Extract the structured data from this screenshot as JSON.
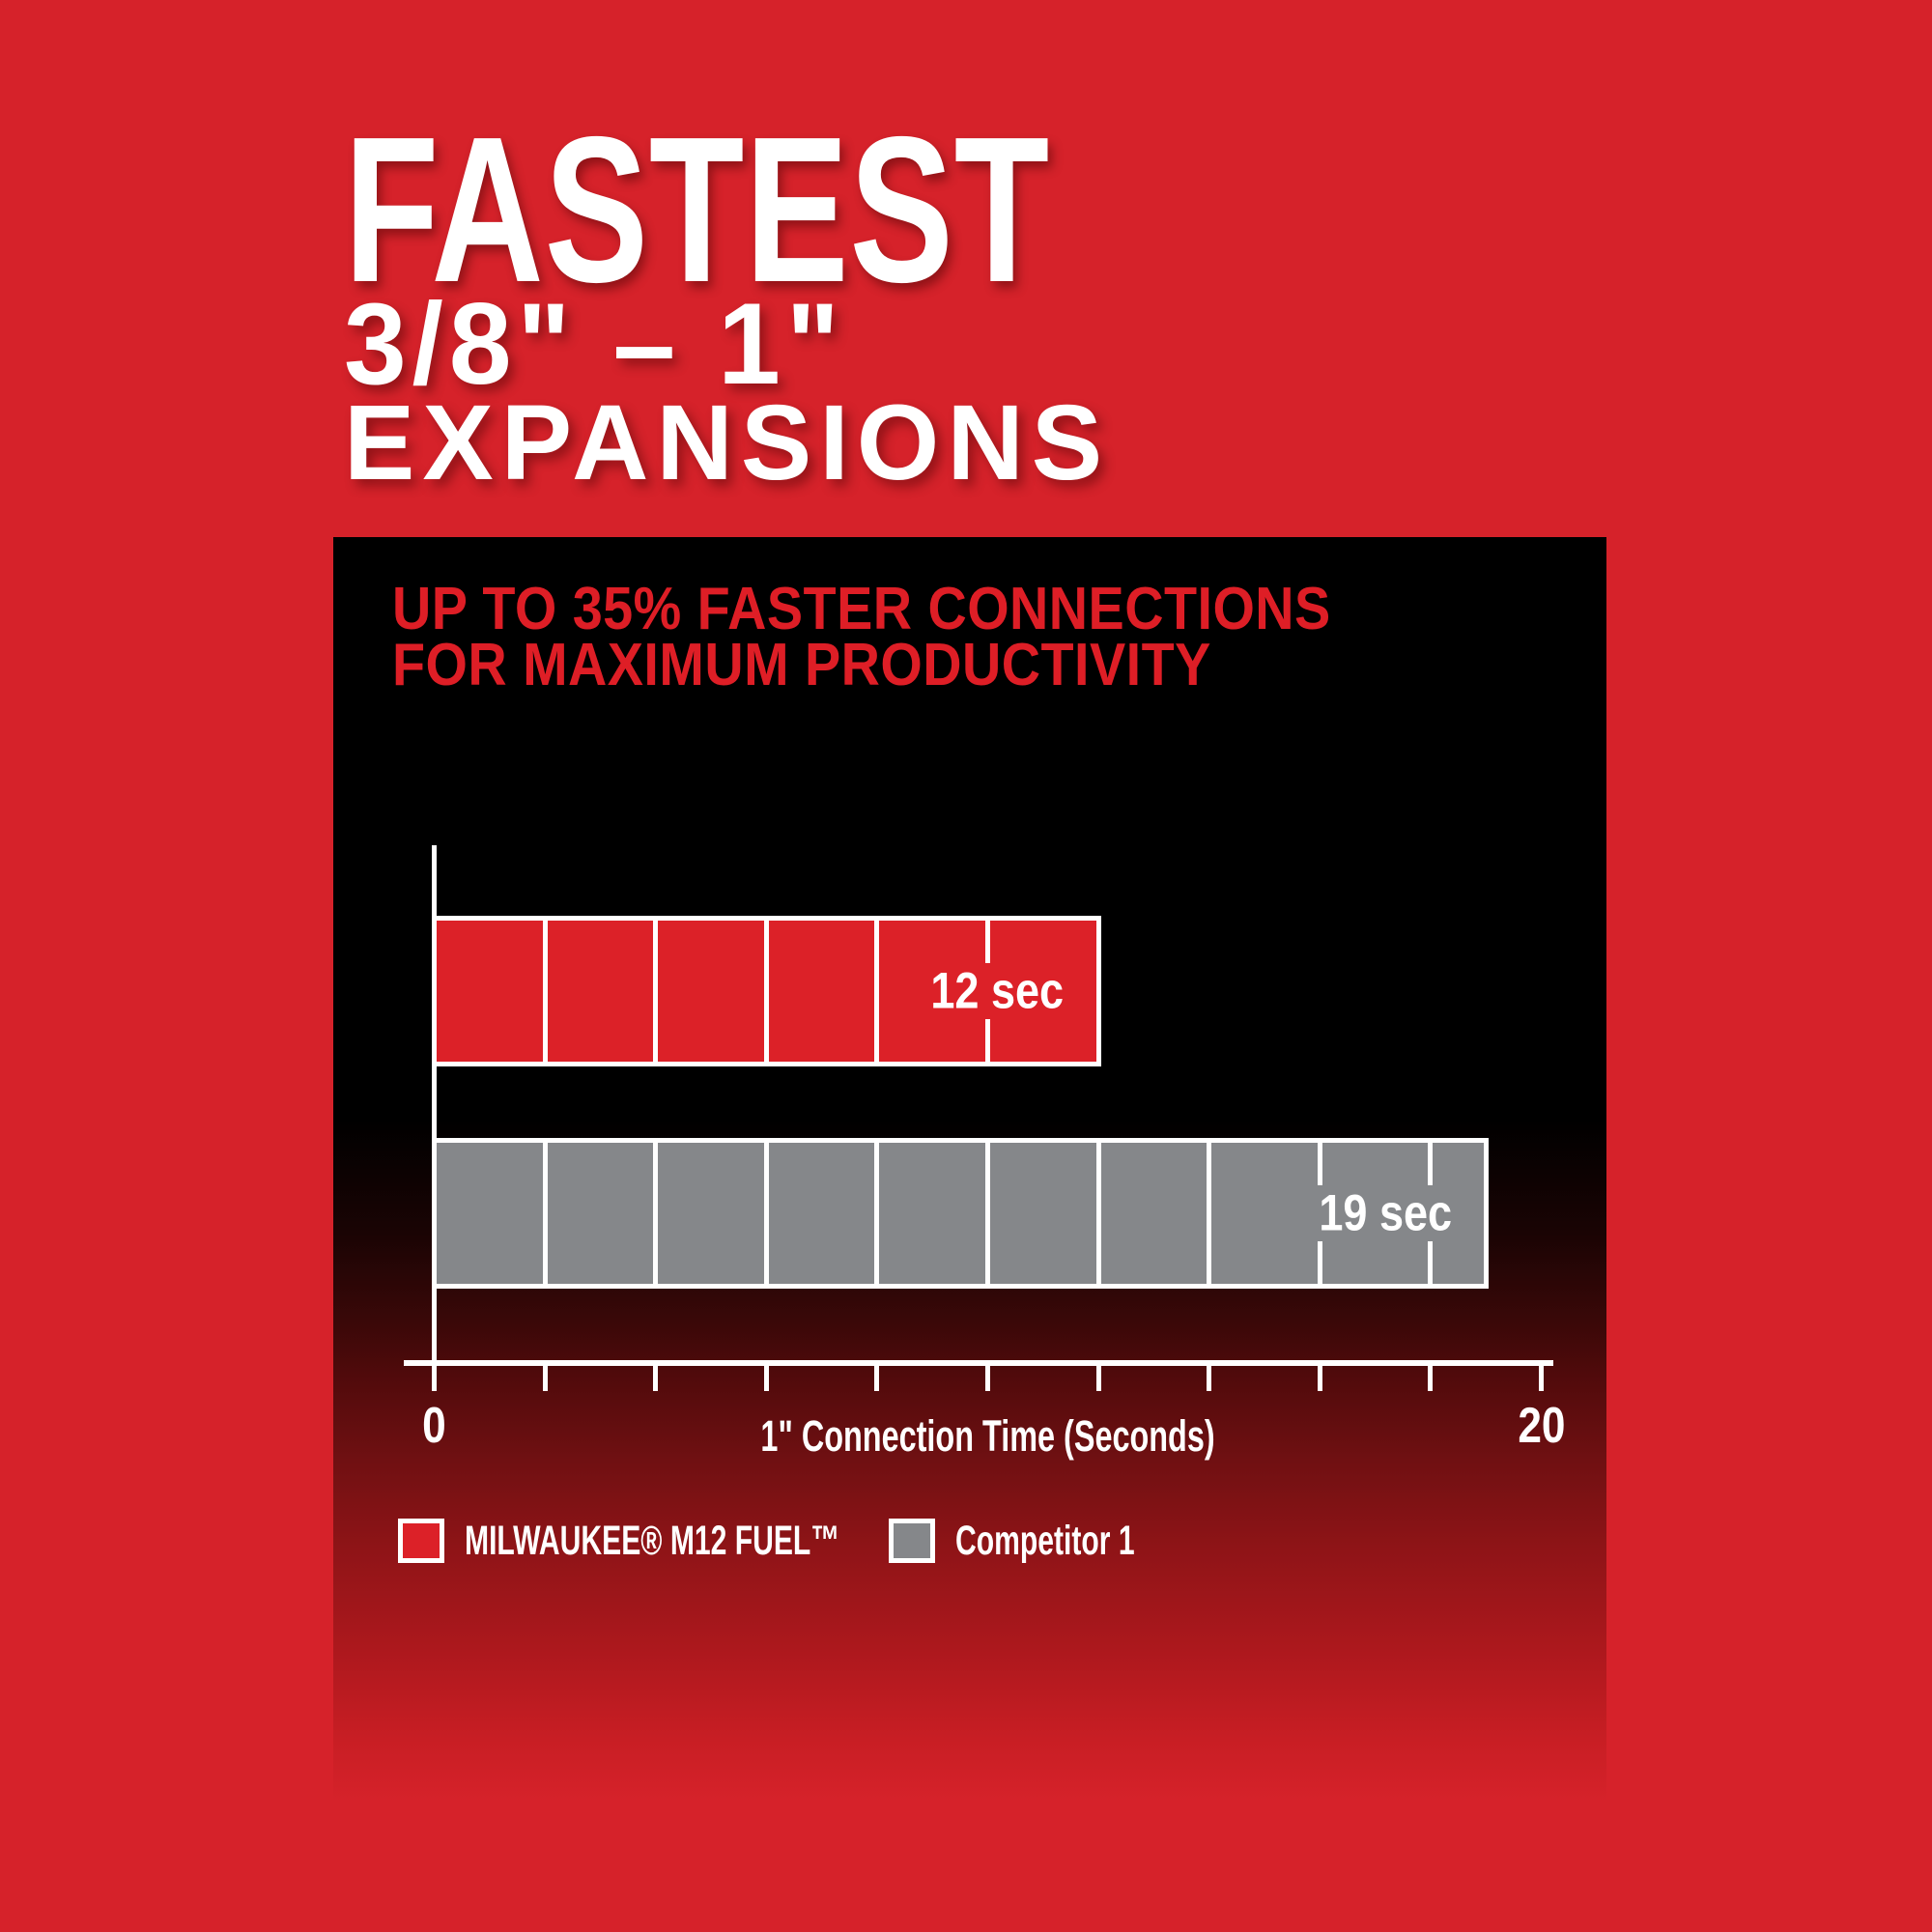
{
  "title": {
    "line1": "FASTEST",
    "line2": "3/8\" – 1\"",
    "line3": "EXPANSIONS"
  },
  "panel": {
    "heading_line1": "UP TO 35% FASTER CONNECTIONS",
    "heading_line2": "FOR MAXIMUM PRODUCTIVITY"
  },
  "chart_data": {
    "type": "bar",
    "orientation": "horizontal",
    "title": "UP TO 35% FASTER CONNECTIONS FOR MAXIMUM PRODUCTIVITY",
    "xlabel": "1\" Connection Time (Seconds)",
    "xlim": [
      0,
      20
    ],
    "xtick_interval": 2,
    "xtick_labels": [
      {
        "value": 0,
        "label": "0"
      },
      {
        "value": 20,
        "label": "20"
      }
    ],
    "segment_interval": 2,
    "grid": false,
    "legend_position": "bottom",
    "series": [
      {
        "name": "MILWAUKEE® M12 FUEL™",
        "value": 12,
        "label": "12 sec",
        "color": "#DC2128"
      },
      {
        "name": "Competitor 1",
        "value": 19,
        "label": "19 sec",
        "color": "#85878A"
      }
    ]
  },
  "colors": {
    "page_red": "#D6222A",
    "bar_red": "#DC2128",
    "heading_red": "#DE1E26",
    "bar_gray": "#85878A",
    "panel_black": "#000000",
    "line_white": "#FFFFFF"
  }
}
